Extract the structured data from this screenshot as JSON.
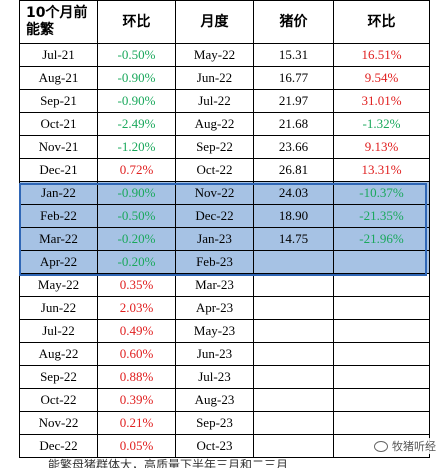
{
  "table": {
    "headers": [
      "10个月前能繁",
      "环比",
      "月度",
      "猪价",
      "环比"
    ],
    "rows": [
      {
        "m1": "Jul-21",
        "c1": "-0.50%",
        "s1": "neg",
        "m2": "May-22",
        "price": "15.31",
        "c2": "16.51%",
        "s2": "pos",
        "hl": false
      },
      {
        "m1": "Aug-21",
        "c1": "-0.90%",
        "s1": "neg",
        "m2": "Jun-22",
        "price": "16.77",
        "c2": "9.54%",
        "s2": "pos",
        "hl": false
      },
      {
        "m1": "Sep-21",
        "c1": "-0.90%",
        "s1": "neg",
        "m2": "Jul-22",
        "price": "21.97",
        "c2": "31.01%",
        "s2": "pos",
        "hl": false
      },
      {
        "m1": "Oct-21",
        "c1": "-2.49%",
        "s1": "neg",
        "m2": "Aug-22",
        "price": "21.68",
        "c2": "-1.32%",
        "s2": "neg",
        "hl": false
      },
      {
        "m1": "Nov-21",
        "c1": "-1.20%",
        "s1": "neg",
        "m2": "Sep-22",
        "price": "23.66",
        "c2": "9.13%",
        "s2": "pos",
        "hl": false
      },
      {
        "m1": "Dec-21",
        "c1": "0.72%",
        "s1": "pos",
        "m2": "Oct-22",
        "price": "26.81",
        "c2": "13.31%",
        "s2": "pos",
        "hl": false
      },
      {
        "m1": "Jan-22",
        "c1": "-0.90%",
        "s1": "neg",
        "m2": "Nov-22",
        "price": "24.03",
        "c2": "-10.37%",
        "s2": "neg",
        "hl": true
      },
      {
        "m1": "Feb-22",
        "c1": "-0.50%",
        "s1": "neg",
        "m2": "Dec-22",
        "price": "18.90",
        "c2": "-21.35%",
        "s2": "neg",
        "hl": true
      },
      {
        "m1": "Mar-22",
        "c1": "-0.20%",
        "s1": "neg",
        "m2": "Jan-23",
        "price": "14.75",
        "c2": "-21.96%",
        "s2": "neg",
        "hl": true
      },
      {
        "m1": "Apr-22",
        "c1": "-0.20%",
        "s1": "neg",
        "m2": "Feb-23",
        "price": "",
        "c2": "",
        "s2": "",
        "hl": true
      },
      {
        "m1": "May-22",
        "c1": "0.35%",
        "s1": "pos",
        "m2": "Mar-23",
        "price": "",
        "c2": "",
        "s2": "",
        "hl": false
      },
      {
        "m1": "Jun-22",
        "c1": "2.03%",
        "s1": "pos",
        "m2": "Apr-23",
        "price": "",
        "c2": "",
        "s2": "",
        "hl": false
      },
      {
        "m1": "Jul-22",
        "c1": "0.49%",
        "s1": "pos",
        "m2": "May-23",
        "price": "",
        "c2": "",
        "s2": "",
        "hl": false
      },
      {
        "m1": "Aug-22",
        "c1": "0.60%",
        "s1": "pos",
        "m2": "Jun-23",
        "price": "",
        "c2": "",
        "s2": "",
        "hl": false
      },
      {
        "m1": "Sep-22",
        "c1": "0.88%",
        "s1": "pos",
        "m2": "Jul-23",
        "price": "",
        "c2": "",
        "s2": "",
        "hl": false
      },
      {
        "m1": "Oct-22",
        "c1": "0.39%",
        "s1": "pos",
        "m2": "Aug-23",
        "price": "",
        "c2": "",
        "s2": "",
        "hl": false
      },
      {
        "m1": "Nov-22",
        "c1": "0.21%",
        "s1": "pos",
        "m2": "Sep-23",
        "price": "",
        "c2": "",
        "s2": "",
        "hl": false
      },
      {
        "m1": "Dec-22",
        "c1": "0.05%",
        "s1": "pos",
        "m2": "Oct-23",
        "price": "",
        "c2": "",
        "s2": "",
        "hl": false
      }
    ]
  },
  "watermark": {
    "text": "牧猪听经",
    "icon": "wechat-icon"
  },
  "caption": "能繁母猪群体大，高质量下半年三月和二三月",
  "colors": {
    "positive": "#e02020",
    "negative": "#1aa85c",
    "highlight": "#a6c2e4",
    "frame": "#2f66b5"
  }
}
